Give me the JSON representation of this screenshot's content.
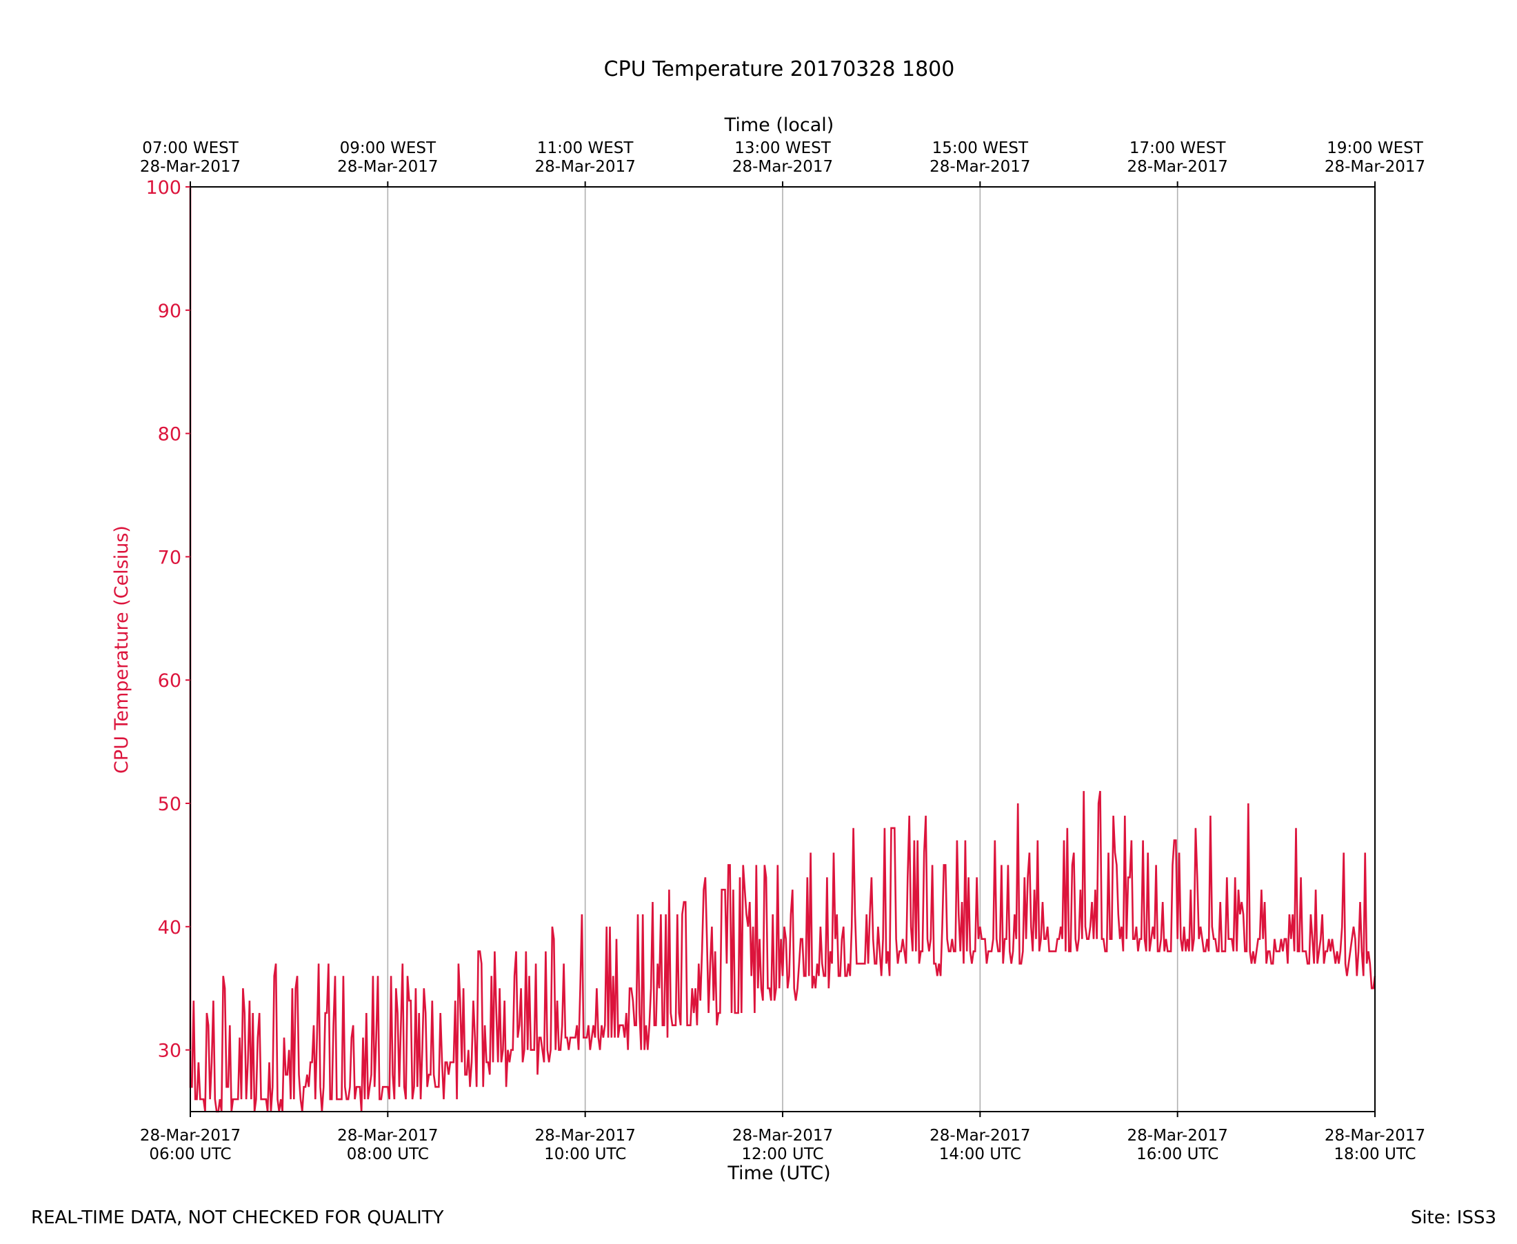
{
  "chart_data": {
    "type": "line",
    "title": "CPU Temperature 20170328 1800",
    "xlabel": "Time (UTC)",
    "x2label": "Time (local)",
    "ylabel": "CPU Temperature (Celsius)",
    "ylim": [
      25,
      100
    ],
    "xlim_hours_utc": [
      6,
      18
    ],
    "grid": "vertical",
    "colors": {
      "series": "#dc143c",
      "axis_text": "#dc143c",
      "grid": "#b0b0b0",
      "frame": "#000000"
    },
    "yticks": [
      {
        "value": 30,
        "label": "30"
      },
      {
        "value": 40,
        "label": "40"
      },
      {
        "value": 50,
        "label": "50"
      },
      {
        "value": 60,
        "label": "60"
      },
      {
        "value": 70,
        "label": "70"
      },
      {
        "value": 80,
        "label": "80"
      },
      {
        "value": 90,
        "label": "90"
      },
      {
        "value": 100,
        "label": "100"
      }
    ],
    "xticks_bottom": [
      {
        "hour": 6,
        "line1": "28-Mar-2017",
        "line2": "06:00 UTC"
      },
      {
        "hour": 8,
        "line1": "28-Mar-2017",
        "line2": "08:00 UTC"
      },
      {
        "hour": 10,
        "line1": "28-Mar-2017",
        "line2": "10:00 UTC"
      },
      {
        "hour": 12,
        "line1": "28-Mar-2017",
        "line2": "12:00 UTC"
      },
      {
        "hour": 14,
        "line1": "28-Mar-2017",
        "line2": "14:00 UTC"
      },
      {
        "hour": 16,
        "line1": "28-Mar-2017",
        "line2": "16:00 UTC"
      },
      {
        "hour": 18,
        "line1": "28-Mar-2017",
        "line2": "18:00 UTC"
      }
    ],
    "xticks_top": [
      {
        "hour": 6,
        "line1": "07:00 WEST",
        "line2": "28-Mar-2017"
      },
      {
        "hour": 8,
        "line1": "09:00 WEST",
        "line2": "28-Mar-2017"
      },
      {
        "hour": 10,
        "line1": "11:00 WEST",
        "line2": "28-Mar-2017"
      },
      {
        "hour": 12,
        "line1": "13:00 WEST",
        "line2": "28-Mar-2017"
      },
      {
        "hour": 14,
        "line1": "15:00 WEST",
        "line2": "28-Mar-2017"
      },
      {
        "hour": 16,
        "line1": "17:00 WEST",
        "line2": "28-Mar-2017"
      },
      {
        "hour": 18,
        "line1": "19:00 WEST",
        "line2": "28-Mar-2017"
      }
    ],
    "series": [
      {
        "name": "CPU Temperature",
        "sample_interval_minutes": 1,
        "startup_spike": {
          "hour": 6.0,
          "value": 100
        },
        "envelope": [
          {
            "hour": 6.0,
            "low": 25,
            "base": 26,
            "high": 35,
            "spike": 35
          },
          {
            "hour": 7.0,
            "low": 25,
            "base": 26,
            "high": 35,
            "spike": 37
          },
          {
            "hour": 8.0,
            "low": 25,
            "base": 27,
            "high": 36,
            "spike": 37
          },
          {
            "hour": 8.7,
            "low": 26,
            "base": 28,
            "high": 38,
            "spike": 41
          },
          {
            "hour": 9.0,
            "low": 26,
            "base": 29,
            "high": 38,
            "spike": 39
          },
          {
            "hour": 10.0,
            "low": 29,
            "base": 31,
            "high": 39,
            "spike": 41
          },
          {
            "hour": 10.7,
            "low": 30,
            "base": 32,
            "high": 41,
            "spike": 43
          },
          {
            "hour": 11.3,
            "low": 31,
            "base": 33,
            "high": 43,
            "spike": 45
          },
          {
            "hour": 12.0,
            "low": 34,
            "base": 35,
            "high": 45,
            "spike": 46
          },
          {
            "hour": 12.5,
            "low": 35,
            "base": 36,
            "high": 46,
            "spike": 47
          },
          {
            "hour": 13.0,
            "low": 36,
            "base": 38,
            "high": 48,
            "spike": 49
          },
          {
            "hour": 14.0,
            "low": 36,
            "base": 38,
            "high": 48,
            "spike": 50
          },
          {
            "hour": 15.0,
            "low": 38,
            "base": 39,
            "high": 49,
            "spike": 51
          },
          {
            "hour": 16.0,
            "low": 38,
            "base": 39,
            "high": 48,
            "spike": 51
          },
          {
            "hour": 17.0,
            "low": 37,
            "base": 38,
            "high": 42,
            "spike": 50
          },
          {
            "hour": 18.0,
            "low": 35,
            "base": 37,
            "high": 40,
            "spike": 47
          }
        ]
      }
    ]
  },
  "footer": {
    "left_note": "REAL-TIME DATA, NOT CHECKED FOR QUALITY",
    "site_label": "Site: ISS3"
  }
}
